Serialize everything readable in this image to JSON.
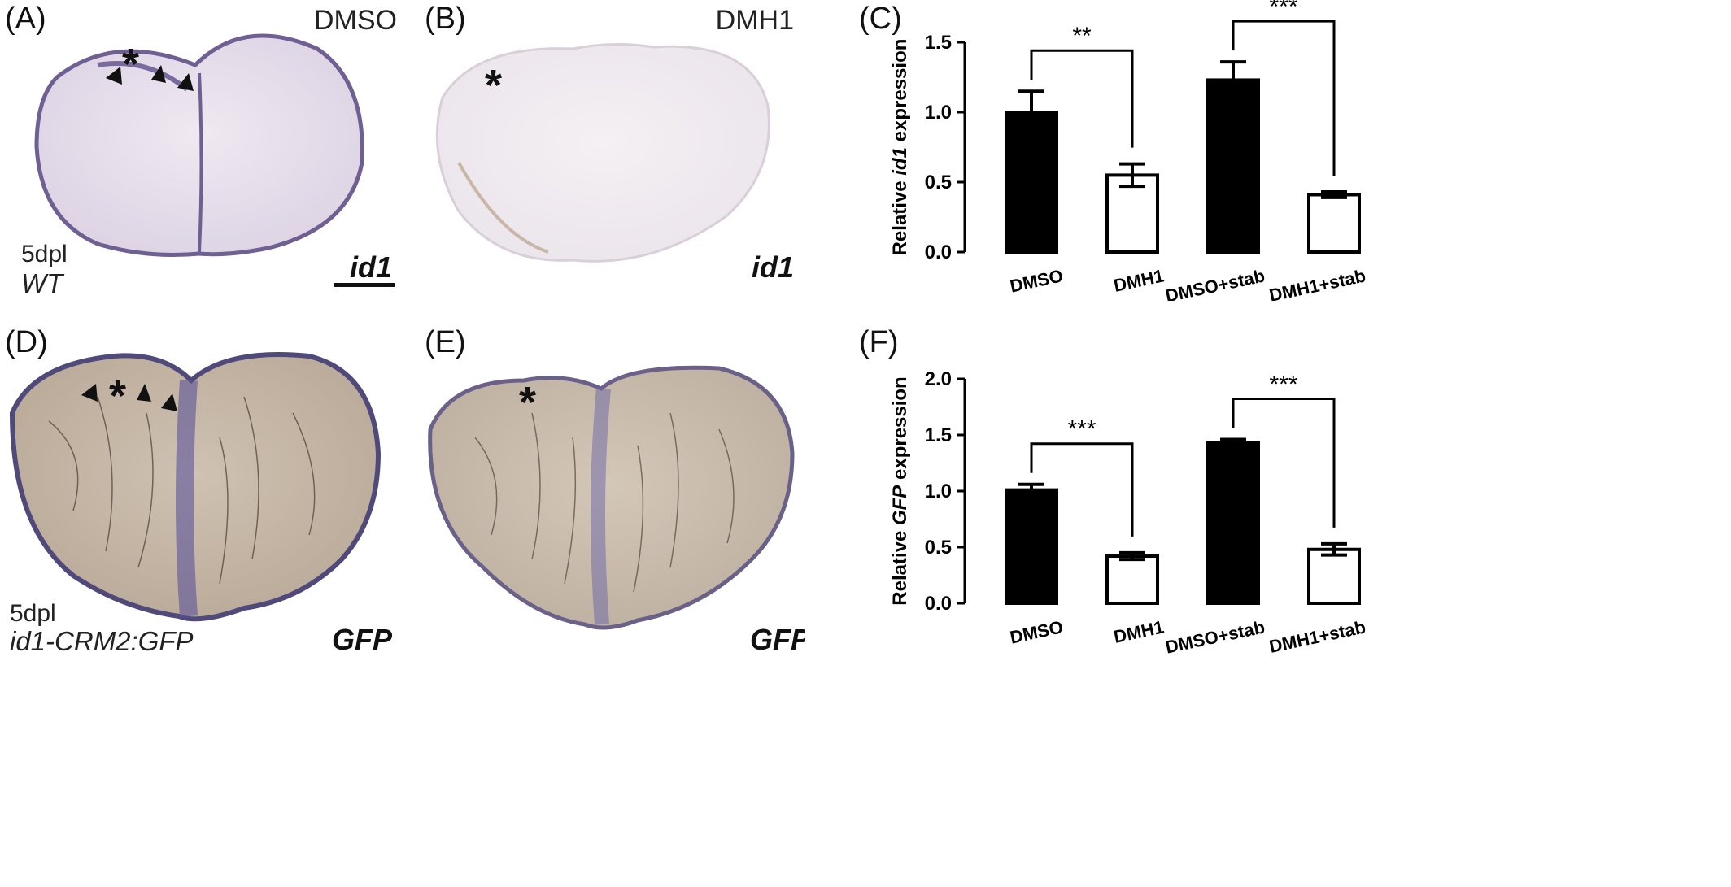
{
  "panels": {
    "a": {
      "label": "(A)",
      "treatment": "DMSO",
      "gene": "id1",
      "stage": "5dpl",
      "genotype": "WT",
      "asterisk": "*"
    },
    "b": {
      "label": "(B)",
      "treatment": "DMH1",
      "gene": "id1",
      "asterisk": "*"
    },
    "c": {
      "label": "(C)"
    },
    "d": {
      "label": "(D)",
      "gene": "GFP",
      "stage": "5dpl",
      "genotype": "id1-CRM2:GFP",
      "asterisk": "*"
    },
    "e": {
      "label": "(E)",
      "gene": "GFP",
      "asterisk": "*"
    },
    "f": {
      "label": "(F)"
    }
  },
  "colors": {
    "black_bar": "#000000",
    "white_bar": "#ffffff",
    "tissue_a": "#e9e2ee",
    "tissue_d": "#c6b6a6"
  },
  "chart_data": [
    {
      "type": "bar",
      "panel": "(C)",
      "ylabel_prefix": "Relative ",
      "ylabel_gene": "id1",
      "ylabel_suffix": " expression",
      "ylim": [
        0,
        1.5
      ],
      "yticks": [
        "0.0",
        "0.5",
        "1.0",
        "1.5"
      ],
      "ytick_values": [
        0,
        0.5,
        1.0,
        1.5
      ],
      "categories": [
        "DMSO",
        "DMH1",
        "DMSO+stab",
        "DMH1+stab"
      ],
      "values": [
        1.0,
        0.55,
        1.23,
        0.41
      ],
      "errors": [
        0.15,
        0.08,
        0.13,
        0.02
      ],
      "fills": [
        "black",
        "white",
        "black",
        "white"
      ],
      "significance": [
        {
          "from": 0,
          "to": 1,
          "label": "**"
        },
        {
          "from": 2,
          "to": 3,
          "label": "***"
        }
      ]
    },
    {
      "type": "bar",
      "panel": "(F)",
      "ylabel_prefix": "Relative ",
      "ylabel_gene": "GFP",
      "ylabel_suffix": " expression",
      "ylim": [
        0,
        2.0
      ],
      "yticks": [
        "0.0",
        "0.5",
        "1.0",
        "1.5",
        "2.0"
      ],
      "ytick_values": [
        0,
        0.5,
        1.0,
        1.5,
        2.0
      ],
      "categories": [
        "DMSO",
        "DMH1",
        "DMSO+stab",
        "DMH1+stab"
      ],
      "values": [
        1.01,
        0.42,
        1.43,
        0.48
      ],
      "errors": [
        0.05,
        0.03,
        0.03,
        0.05
      ],
      "fills": [
        "black",
        "white",
        "black",
        "white"
      ],
      "significance": [
        {
          "from": 0,
          "to": 1,
          "label": "***"
        },
        {
          "from": 2,
          "to": 3,
          "label": "***"
        }
      ]
    }
  ]
}
